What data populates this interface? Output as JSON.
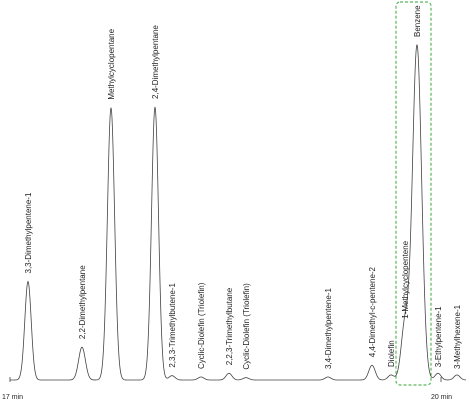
{
  "chart_data": {
    "type": "line",
    "title": "",
    "xlabel": "",
    "ylabel": "",
    "x_axis": {
      "start_label": "17 min",
      "end_label": "20 min"
    },
    "baseline": 0,
    "peaks": [
      {
        "name": "3,3-Dimethylpentene-1",
        "height": 0.294
      },
      {
        "name": "2,2-Dimethylpentane",
        "height": 0.098
      },
      {
        "name": "Methylcyclopentane",
        "height": 0.813
      },
      {
        "name": "2,4-Dimethylpentane",
        "height": 0.815
      },
      {
        "name": "2,3,3-Trimethylbutene-1",
        "height": 0.013
      },
      {
        "name": "Cyclic-Diolefin (Triolefin)",
        "height": 0.009
      },
      {
        "name": "2,2,3-Trimethylbutane",
        "height": 0.02
      },
      {
        "name": "Cyclic-Diolefin (Triolefin)",
        "height": 0.007
      },
      {
        "name": "3,4-Dimethylpentene-1",
        "height": 0.009
      },
      {
        "name": "4,4-Dimethyl-c-pentene-2",
        "height": 0.044
      },
      {
        "name": "Diolefin",
        "height": 0.015
      },
      {
        "name": "1-Methylcyclopentene",
        "height": 0.165
      },
      {
        "name": "Benzene",
        "height": 1.0
      },
      {
        "name": "3-Ethylpentene-1",
        "height": 0.02
      },
      {
        "name": "3-Methylhexene-1",
        "height": 0.015
      }
    ],
    "highlight": {
      "peak": "Benzene",
      "style": "dashed-green-box"
    },
    "colors": {
      "trace": "#444444",
      "highlight": "#5cb85c"
    }
  }
}
